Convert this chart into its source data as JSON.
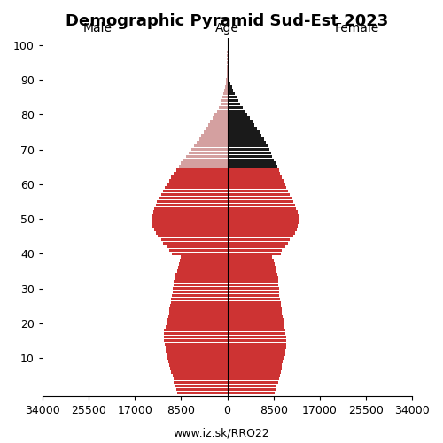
{
  "title": "Demographic Pyramid Sud-Est 2023",
  "xlabel_left": "Male",
  "xlabel_right": "Female",
  "age_label": "Age",
  "footer": "www.iz.sk/RRO22",
  "xlim": 34000,
  "xticks": [
    34000,
    25500,
    17000,
    8500,
    0
  ],
  "ages": [
    0,
    1,
    2,
    3,
    4,
    5,
    6,
    7,
    8,
    9,
    10,
    11,
    12,
    13,
    14,
    15,
    16,
    17,
    18,
    19,
    20,
    21,
    22,
    23,
    24,
    25,
    26,
    27,
    28,
    29,
    30,
    31,
    32,
    33,
    34,
    35,
    36,
    37,
    38,
    39,
    40,
    41,
    42,
    43,
    44,
    45,
    46,
    47,
    48,
    49,
    50,
    51,
    52,
    53,
    54,
    55,
    56,
    57,
    58,
    59,
    60,
    61,
    62,
    63,
    64,
    65,
    66,
    67,
    68,
    69,
    70,
    71,
    72,
    73,
    74,
    75,
    76,
    77,
    78,
    79,
    80,
    81,
    82,
    83,
    84,
    85,
    86,
    87,
    88,
    89,
    90,
    91,
    92,
    93,
    94,
    95,
    96,
    97,
    98,
    99,
    100
  ],
  "male": [
    9200,
    9400,
    9600,
    9800,
    9900,
    10100,
    10300,
    10500,
    10700,
    10800,
    11000,
    11200,
    11300,
    11400,
    11500,
    11600,
    11700,
    11700,
    11600,
    11400,
    11200,
    11000,
    10900,
    10700,
    10600,
    10500,
    10400,
    10300,
    10200,
    10100,
    10000,
    9900,
    9800,
    9600,
    9500,
    9200,
    9000,
    8900,
    8700,
    8600,
    10200,
    10600,
    11200,
    11800,
    12100,
    12800,
    13200,
    13500,
    13700,
    13800,
    13900,
    13800,
    13600,
    13400,
    13200,
    12900,
    12600,
    12200,
    11800,
    11500,
    11100,
    10700,
    10300,
    9800,
    9400,
    8900,
    8500,
    8000,
    7500,
    7100,
    6600,
    6100,
    5600,
    5200,
    4800,
    4300,
    3900,
    3500,
    3100,
    2700,
    2300,
    1900,
    1600,
    1300,
    1100,
    900,
    720,
    570,
    430,
    310,
    210,
    140,
    90,
    55,
    32,
    18,
    10,
    5,
    3,
    1,
    1
  ],
  "female": [
    8700,
    8900,
    9100,
    9300,
    9500,
    9700,
    9900,
    10000,
    10100,
    10200,
    10400,
    10600,
    10700,
    10800,
    10900,
    10900,
    10800,
    10700,
    10600,
    10500,
    10400,
    10300,
    10200,
    10100,
    10000,
    9900,
    9800,
    9700,
    9600,
    9500,
    9500,
    9400,
    9400,
    9300,
    9200,
    9000,
    8800,
    8700,
    8500,
    8300,
    9800,
    10100,
    10600,
    11200,
    11500,
    12100,
    12500,
    12800,
    13000,
    13100,
    13200,
    13100,
    12900,
    12700,
    12500,
    12200,
    11900,
    11500,
    11100,
    10800,
    10600,
    10300,
    10000,
    9700,
    9500,
    9200,
    8900,
    8600,
    8300,
    8100,
    7800,
    7500,
    7100,
    6700,
    6300,
    5900,
    5400,
    5000,
    4600,
    4100,
    3700,
    3200,
    2800,
    2400,
    2000,
    1700,
    1400,
    1100,
    860,
    640,
    470,
    330,
    220,
    140,
    85,
    50,
    28,
    15,
    8,
    4,
    2
  ],
  "bar_color_young": "#cd3333",
  "bar_color_old": "#d4a0a0",
  "bar_color_black": "#1a1a1a",
  "age_threshold_color": 75,
  "bar_height": 0.9,
  "background_color": "#ffffff",
  "title_fontsize": 13,
  "label_fontsize": 10,
  "tick_fontsize": 9,
  "footer_fontsize": 9
}
